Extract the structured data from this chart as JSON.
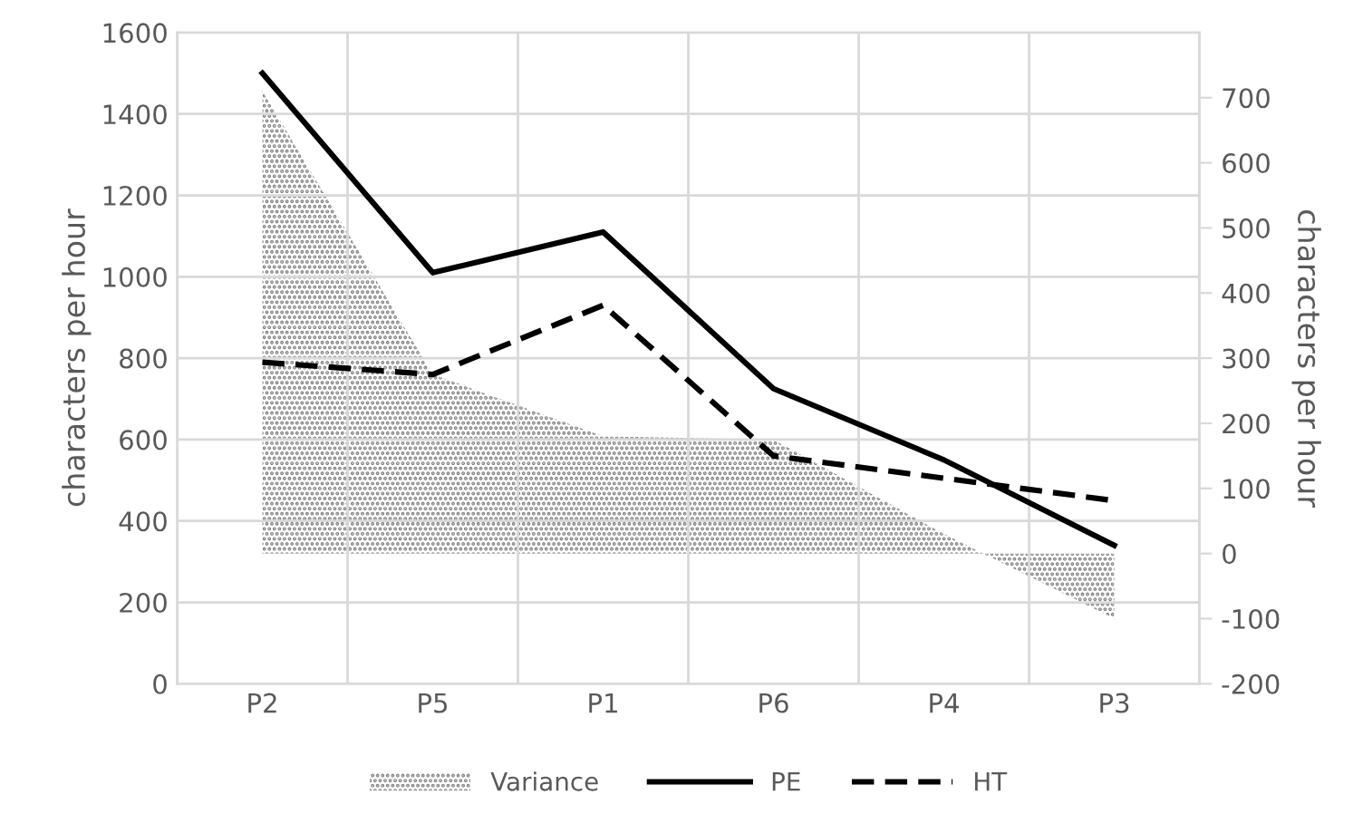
{
  "chart_data": {
    "type": "line",
    "categories": [
      "P2",
      "P5",
      "P1",
      "P6",
      "P4",
      "P3"
    ],
    "ylabel": "characters per hour",
    "y2label": "characters per hour",
    "ylim": [
      0,
      1600
    ],
    "yticks": [
      0,
      200,
      400,
      600,
      800,
      1000,
      1200,
      1400,
      1600
    ],
    "y2lim": [
      -200,
      800
    ],
    "y2ticks": [
      -200,
      -100,
      0,
      100,
      200,
      300,
      400,
      500,
      600,
      700
    ],
    "grid": true,
    "legend": "bottom",
    "series": [
      {
        "name": "Variance",
        "type": "area",
        "axis": "y2",
        "color": "#808080",
        "values": [
          710,
          275,
          180,
          175,
          30,
          -100
        ]
      },
      {
        "name": "PE",
        "color": "#000000",
        "line_style": "solid",
        "values": [
          1500,
          1010,
          1110,
          725,
          550,
          340
        ]
      },
      {
        "name": "HT",
        "color": "#000000",
        "line_style": "dashed",
        "values": [
          790,
          760,
          930,
          560,
          505,
          450
        ]
      }
    ]
  }
}
